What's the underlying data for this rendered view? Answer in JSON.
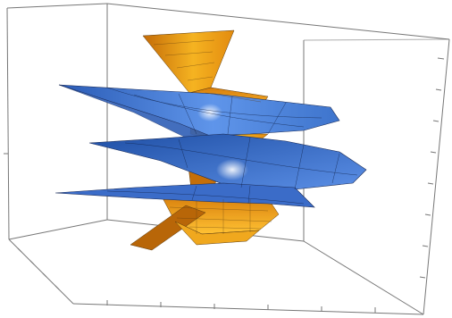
{
  "plot": {
    "kind": "3d-parametric-surface-plot",
    "surfaces": [
      {
        "id": "blue-helicoid",
        "color": "#4a7fd6"
      },
      {
        "id": "orange-helicoid",
        "color": "#f2a417"
      }
    ],
    "frame": {
      "box": true,
      "axes_ticks": true,
      "axis_labels": false
    },
    "background": "#ffffff"
  }
}
